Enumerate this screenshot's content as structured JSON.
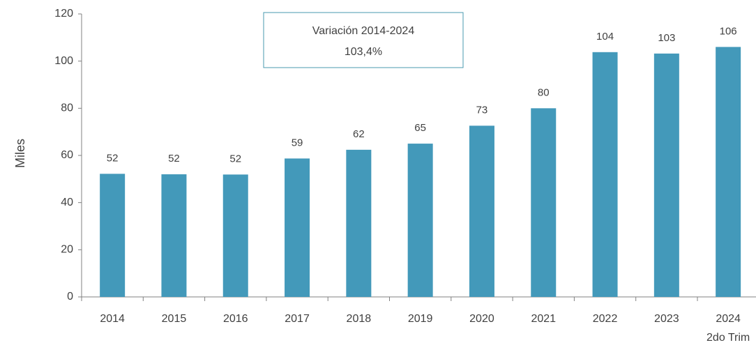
{
  "chart_data": {
    "type": "bar",
    "y_axis_label": "Miles",
    "categories": [
      "2014",
      "2015",
      "2016",
      "2017",
      "2018",
      "2019",
      "2020",
      "2021",
      "2022",
      "2023",
      "2024"
    ],
    "last_category_note": "2do Trim",
    "values": [
      52.2,
      52.0,
      51.9,
      58.7,
      62.4,
      65.0,
      72.6,
      80.0,
      103.8,
      103.2,
      106.0
    ],
    "value_labels": [
      "52",
      "52",
      "52",
      "59",
      "62",
      "65",
      "73",
      "80",
      "104",
      "103",
      "106"
    ],
    "color": "#4399ba",
    "ylim": [
      0,
      120
    ],
    "yticks": [
      0,
      20,
      40,
      60,
      80,
      100,
      120
    ],
    "grid": false,
    "textbox": [
      "Variación 2014-2024",
      "103,4%"
    ]
  }
}
